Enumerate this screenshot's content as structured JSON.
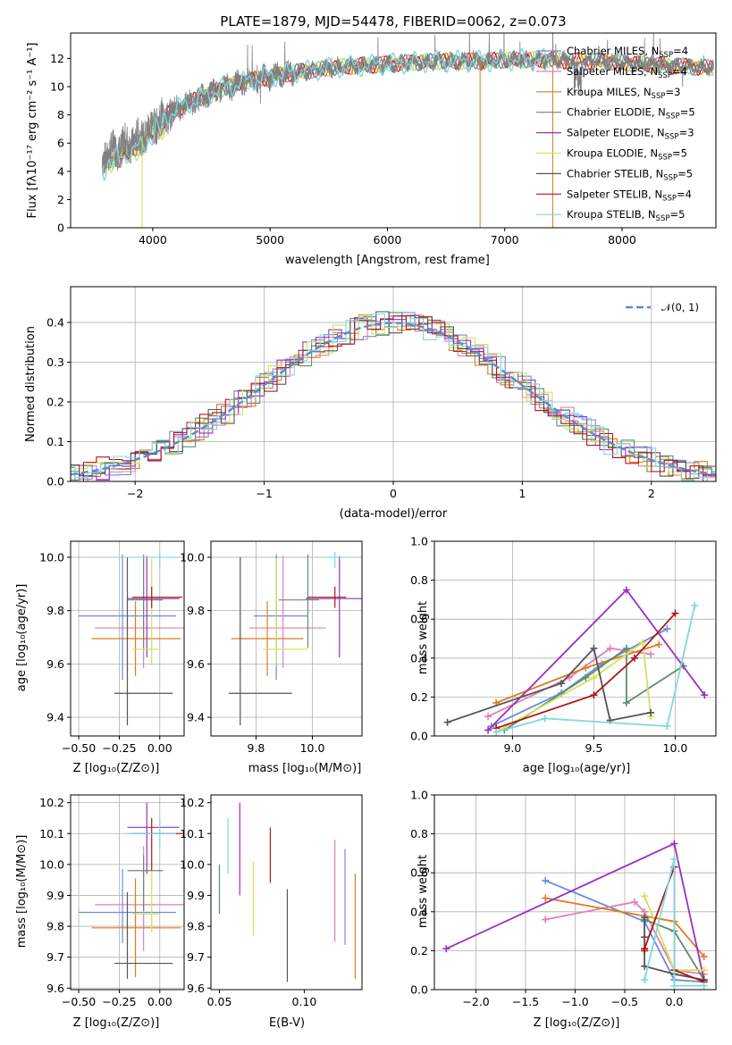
{
  "figure": {
    "title": "PLATE=1879, MJD=54478, FIBERID=0062, z=0.073"
  },
  "colors": {
    "Chabrier MILES": "#6a8ce0",
    "Salpeter MILES": "#e27fb5",
    "Kroupa MILES": "#e07a1f",
    "Chabrier ELODIE": "#5f8e6a",
    "Salpeter ELODIE": "#9b2ec0",
    "Kroupa ELODIE": "#cfe35a",
    "Chabrier STELIB": "#555555",
    "Salpeter STELIB": "#b01515",
    "Kroupa STELIB": "#7fd8df",
    "gray_spectrum": "#808080",
    "gauss": "#5b8bd6"
  },
  "chart_data": [
    {
      "id": "spectrum",
      "type": "line",
      "xlabel": "wavelength [Angstrom, rest frame]",
      "ylabel": "Flux [fλ10⁻¹⁷ erg cm⁻² s⁻¹ A⁻¹]",
      "xlim": [
        3300,
        8800
      ],
      "ylim": [
        0,
        13.8
      ],
      "xticks": [
        4000,
        5000,
        6000,
        7000,
        8000
      ],
      "yticks": [
        0,
        2,
        4,
        6,
        8,
        10,
        12
      ],
      "grid": false,
      "legend": "right",
      "legend_entries": [
        {
          "name": "Chabrier MILES",
          "nssp": "4"
        },
        {
          "name": "Salpeter MILES",
          "nssp": "4"
        },
        {
          "name": "Kroupa MILES",
          "nssp": "3"
        },
        {
          "name": "Chabrier ELODIE",
          "nssp": "5"
        },
        {
          "name": "Salpeter ELODIE",
          "nssp": "3"
        },
        {
          "name": "Kroupa ELODIE",
          "nssp": "5"
        },
        {
          "name": "Chabrier STELIB",
          "nssp": "5"
        },
        {
          "name": "Salpeter STELIB",
          "nssp": "4"
        },
        {
          "name": "Kroupa STELIB",
          "nssp": "5"
        }
      ],
      "continuum": {
        "x": [
          3570,
          3700,
          3900,
          4000,
          4200,
          4400,
          4600,
          4800,
          5000,
          5200,
          5400,
          5600,
          5800,
          6000,
          6200,
          6400,
          6600,
          6800,
          7000,
          7200,
          7400,
          7600,
          7800,
          8000,
          8200,
          8400,
          8600,
          8800
        ],
        "y": [
          5.0,
          5.6,
          6.4,
          7.3,
          8.4,
          9.2,
          9.9,
          10.4,
          10.7,
          11.0,
          11.2,
          11.4,
          11.5,
          11.6,
          11.7,
          11.8,
          11.8,
          11.8,
          11.9,
          11.9,
          11.9,
          11.8,
          11.8,
          11.7,
          11.6,
          11.5,
          11.4,
          11.3
        ]
      },
      "spikes": [
        {
          "x": 3910,
          "y": 0,
          "color": "Kroupa ELODIE"
        },
        {
          "x": 6790,
          "y": 0,
          "color": "Kroupa MILES"
        },
        {
          "x": 7410,
          "y": 0,
          "color": "Kroupa MILES"
        }
      ]
    },
    {
      "id": "residuals",
      "type": "line",
      "xlabel": "(data-model)/error",
      "ylabel": "Normed distribution",
      "xlim": [
        -2.5,
        2.5
      ],
      "ylim": [
        0,
        0.49
      ],
      "xticks": [
        -2,
        -1,
        0,
        1,
        2
      ],
      "yticks": [
        0.0,
        0.1,
        0.2,
        0.3,
        0.4
      ],
      "grid": true,
      "legend": "top-right",
      "legend_entries": [
        {
          "name": "𝒩(0, 1)"
        }
      ],
      "gaussian": {
        "mu": 0,
        "sigma": 1
      }
    },
    {
      "id": "age_vs_Z",
      "type": "scatter",
      "xlabel": "Z [log₁₀(Z/Z⊙)]",
      "ylabel": "age  [log₁₀(age/yr)]",
      "xlim": [
        -0.55,
        0.15
      ],
      "ylim": [
        9.33,
        10.06
      ],
      "xticks": [
        -0.5,
        -0.25,
        0.0
      ],
      "yticks": [
        9.4,
        9.6,
        9.8,
        10.0
      ],
      "grid": true,
      "points": [
        {
          "series": "Chabrier MILES",
          "x": -0.23,
          "y": 9.78,
          "xerr": [
            0.27,
            0.33
          ],
          "yerr": [
            0.24,
            0.23
          ]
        },
        {
          "series": "Salpeter MILES",
          "x": -0.1,
          "y": 9.735,
          "xerr": [
            0.3,
            0.33
          ],
          "yerr": [
            0.15,
            0.27
          ]
        },
        {
          "series": "Kroupa MILES",
          "x": -0.15,
          "y": 9.695,
          "xerr": [
            0.27,
            0.28
          ],
          "yerr": [
            0.14,
            0.14
          ]
        },
        {
          "series": "Chabrier ELODIE",
          "x": -0.1,
          "y": 9.84,
          "xerr": [
            0.1,
            0.12
          ],
          "yerr": [
            0.18,
            0.17
          ]
        },
        {
          "series": "Salpeter ELODIE",
          "x": -0.08,
          "y": 9.845,
          "xerr": [
            0.12,
            0.2
          ],
          "yerr": [
            0.22,
            0.16
          ]
        },
        {
          "series": "Kroupa ELODIE",
          "x": -0.05,
          "y": 9.655,
          "xerr": [
            0.12,
            0.05
          ],
          "yerr": [
            0.06,
            0.34
          ]
        },
        {
          "series": "Chabrier STELIB",
          "x": -0.2,
          "y": 9.49,
          "xerr": [
            0.08,
            0.28
          ],
          "yerr": [
            0.12,
            0.51
          ]
        },
        {
          "series": "Salpeter STELIB",
          "x": -0.05,
          "y": 9.85,
          "xerr": [
            0.12,
            0.19
          ],
          "yerr": [
            0.04,
            0.04
          ]
        },
        {
          "series": "Kroupa STELIB",
          "x": 0.0,
          "y": 10.0,
          "xerr": [
            0.2,
            0.1
          ],
          "yerr": [
            0.04,
            0.02
          ]
        }
      ]
    },
    {
      "id": "age_vs_mass",
      "type": "scatter",
      "xlabel": "mass [log₁₀(M/M⊙)]",
      "ylabel": "",
      "xlim": [
        9.55,
        10.22
      ],
      "ylim": [
        9.33,
        10.06
      ],
      "xticks": [
        9.75,
        10.0
      ],
      "yticks": [
        9.4,
        9.6,
        9.8,
        10.0
      ],
      "grid": true,
      "points": [
        {
          "series": "Chabrier MILES",
          "x": 9.84,
          "y": 9.78,
          "xerr": [
            0.1,
            0.14
          ],
          "yerr": [
            0.24,
            0.23
          ]
        },
        {
          "series": "Salpeter MILES",
          "x": 9.87,
          "y": 9.735,
          "xerr": [
            0.15,
            0.19
          ],
          "yerr": [
            0.15,
            0.27
          ]
        },
        {
          "series": "Kroupa MILES",
          "x": 9.8,
          "y": 9.695,
          "xerr": [
            0.16,
            0.16
          ],
          "yerr": [
            0.14,
            0.14
          ]
        },
        {
          "series": "Chabrier ELODIE",
          "x": 9.98,
          "y": 9.84,
          "xerr": [
            0.13,
            0.05
          ],
          "yerr": [
            0.18,
            0.17
          ]
        },
        {
          "series": "Salpeter ELODIE",
          "x": 10.12,
          "y": 9.845,
          "xerr": [
            0.15,
            0.11
          ],
          "yerr": [
            0.22,
            0.16
          ]
        },
        {
          "series": "Kroupa ELODIE",
          "x": 9.84,
          "y": 9.655,
          "xerr": [
            0.06,
            0.14
          ],
          "yerr": [
            0.06,
            0.34
          ]
        },
        {
          "series": "Chabrier STELIB",
          "x": 9.68,
          "y": 9.49,
          "xerr": [
            0.05,
            0.23
          ],
          "yerr": [
            0.12,
            0.51
          ]
        },
        {
          "series": "Salpeter STELIB",
          "x": 10.1,
          "y": 9.85,
          "xerr": [
            0.12,
            0.05
          ],
          "yerr": [
            0.04,
            0.04
          ]
        },
        {
          "series": "Kroupa STELIB",
          "x": 10.1,
          "y": 10.0,
          "xerr": [
            0.05,
            0.05
          ],
          "yerr": [
            0.04,
            0.02
          ]
        }
      ]
    },
    {
      "id": "weight_vs_age",
      "type": "line",
      "xlabel": "age  [log₁₀(age/yr)]",
      "ylabel": "mass weight",
      "xlim": [
        8.52,
        10.25
      ],
      "ylim": [
        0,
        1
      ],
      "xticks": [
        9.0,
        9.5,
        10.0
      ],
      "yticks": [
        0.0,
        0.2,
        0.4,
        0.6,
        0.8,
        1.0
      ],
      "grid": true,
      "series": [
        {
          "name": "Chabrier MILES",
          "x": [
            8.87,
            9.3,
            9.55,
            9.95
          ],
          "y": [
            0.05,
            0.22,
            0.37,
            0.55
          ]
        },
        {
          "name": "Salpeter MILES",
          "x": [
            8.85,
            9.35,
            9.6,
            9.85
          ],
          "y": [
            0.1,
            0.3,
            0.45,
            0.42
          ]
        },
        {
          "name": "Kroupa MILES",
          "x": [
            8.9,
            9.45,
            9.9
          ],
          "y": [
            0.17,
            0.35,
            0.47
          ]
        },
        {
          "name": "Chabrier ELODIE",
          "x": [
            8.95,
            9.45,
            9.7,
            9.7,
            10.05
          ],
          "y": [
            0.03,
            0.3,
            0.45,
            0.17,
            0.36
          ]
        },
        {
          "name": "Salpeter ELODIE",
          "x": [
            8.85,
            9.7,
            10.18
          ],
          "y": [
            0.03,
            0.75,
            0.21
          ]
        },
        {
          "name": "Kroupa ELODIE",
          "x": [
            8.9,
            9.5,
            9.8,
            9.85
          ],
          "y": [
            0.02,
            0.3,
            0.48,
            0.1
          ]
        },
        {
          "name": "Chabrier STELIB",
          "x": [
            8.6,
            9.3,
            9.5,
            9.6,
            9.85
          ],
          "y": [
            0.07,
            0.27,
            0.45,
            0.08,
            0.12
          ]
        },
        {
          "name": "Salpeter STELIB",
          "x": [
            8.9,
            9.5,
            9.75,
            10.0
          ],
          "y": [
            0.04,
            0.21,
            0.4,
            0.63
          ]
        },
        {
          "name": "Kroupa STELIB",
          "x": [
            8.9,
            9.2,
            9.95,
            10.12
          ],
          "y": [
            0.02,
            0.09,
            0.05,
            0.67
          ]
        }
      ]
    },
    {
      "id": "mass_vs_Z",
      "type": "scatter",
      "xlabel": "Z [log₁₀(Z/Z⊙)]",
      "ylabel": "mass [log₁₀(M/M⊙)]",
      "xlim": [
        -0.55,
        0.15
      ],
      "ylim": [
        9.595,
        10.225
      ],
      "xticks": [
        -0.5,
        -0.25,
        0.0
      ],
      "yticks": [
        9.6,
        9.7,
        9.8,
        9.9,
        10.0,
        10.1,
        10.2
      ],
      "grid": true,
      "points": [
        {
          "series": "Chabrier MILES",
          "x": -0.23,
          "y": 9.845,
          "xerr": [
            0.27,
            0.33
          ],
          "yerr": [
            0.1,
            0.14
          ]
        },
        {
          "series": "Salpeter MILES",
          "x": -0.1,
          "y": 9.87,
          "xerr": [
            0.3,
            0.33
          ],
          "yerr": [
            0.15,
            0.19
          ]
        },
        {
          "series": "Kroupa MILES",
          "x": -0.15,
          "y": 9.795,
          "xerr": [
            0.27,
            0.28
          ],
          "yerr": [
            0.16,
            0.16
          ]
        },
        {
          "series": "Chabrier ELODIE",
          "x": -0.1,
          "y": 9.98,
          "xerr": [
            0.1,
            0.12
          ],
          "yerr": [
            0.13,
            0.05
          ]
        },
        {
          "series": "Salpeter ELODIE",
          "x": -0.08,
          "y": 10.12,
          "xerr": [
            0.12,
            0.2
          ],
          "yerr": [
            0.15,
            0.08
          ]
        },
        {
          "series": "Kroupa ELODIE",
          "x": -0.05,
          "y": 9.84,
          "xerr": [
            0.12,
            0.05
          ],
          "yerr": [
            0.06,
            0.14
          ]
        },
        {
          "series": "Chabrier STELIB",
          "x": -0.2,
          "y": 9.68,
          "xerr": [
            0.08,
            0.28
          ],
          "yerr": [
            0.05,
            0.23
          ]
        },
        {
          "series": "Salpeter STELIB",
          "x": -0.05,
          "y": 10.1,
          "xerr": [
            0.12,
            0.19
          ],
          "yerr": [
            0.12,
            0.05
          ]
        },
        {
          "series": "Kroupa STELIB",
          "x": 0.0,
          "y": 10.1,
          "xerr": [
            0.2,
            0.1
          ],
          "yerr": [
            0.05,
            0.05
          ]
        }
      ]
    },
    {
      "id": "mass_vs_ebv",
      "type": "scatter",
      "xlabel": "E(B-V)",
      "ylabel": "",
      "xlim": [
        0.045,
        0.134
      ],
      "ylim": [
        9.595,
        10.225
      ],
      "xticks": [
        0.05,
        0.1
      ],
      "xticklabels": [
        "0.05",
        "0.10"
      ],
      "yticks": [
        9.6,
        9.7,
        9.8,
        9.9,
        10.0,
        10.1,
        10.2
      ],
      "grid": false,
      "points": [
        {
          "series": "Chabrier ELODIE",
          "x": 0.05,
          "y": 9.93,
          "yerr": [
            0.09,
            0.07
          ]
        },
        {
          "series": "Kroupa STELIB",
          "x": 0.055,
          "y": 10.06,
          "yerr": [
            0.09,
            0.09
          ]
        },
        {
          "series": "Salpeter ELODIE",
          "x": 0.062,
          "y": 10.06,
          "yerr": [
            0.16,
            0.14
          ]
        },
        {
          "series": "Kroupa ELODIE",
          "x": 0.07,
          "y": 9.89,
          "yerr": [
            0.12,
            0.12
          ]
        },
        {
          "series": "Salpeter STELIB",
          "x": 0.08,
          "y": 10.03,
          "yerr": [
            0.09,
            0.09
          ]
        },
        {
          "series": "Chabrier STELIB",
          "x": 0.09,
          "y": 9.77,
          "yerr": [
            0.15,
            0.15
          ]
        },
        {
          "series": "Salpeter MILES",
          "x": 0.118,
          "y": 9.91,
          "yerr": [
            0.16,
            0.17
          ]
        },
        {
          "series": "Chabrier MILES",
          "x": 0.124,
          "y": 9.85,
          "yerr": [
            0.11,
            0.2
          ]
        },
        {
          "series": "Kroupa MILES",
          "x": 0.13,
          "y": 9.8,
          "yerr": [
            0.17,
            0.17
          ]
        }
      ]
    },
    {
      "id": "weight_vs_Z",
      "type": "line",
      "xlabel": "Z [log₁₀(Z/Z⊙)]",
      "ylabel": "mass weight",
      "xlim": [
        -2.42,
        0.42
      ],
      "ylim": [
        0,
        1
      ],
      "xticks": [
        -2.0,
        -1.5,
        -1.0,
        -0.5,
        0.0
      ],
      "yticks": [
        0.0,
        0.2,
        0.4,
        0.6,
        0.8,
        1.0
      ],
      "grid": true,
      "series": [
        {
          "name": "Chabrier MILES",
          "x": [
            -1.3,
            -0.3,
            0.0,
            0.3
          ],
          "y": [
            0.56,
            0.35,
            0.05,
            0.04
          ]
        },
        {
          "name": "Salpeter MILES",
          "x": [
            -1.3,
            -0.4,
            -0.3,
            0.0,
            0.3
          ],
          "y": [
            0.36,
            0.45,
            0.4,
            0.1,
            0.08
          ]
        },
        {
          "name": "Kroupa MILES",
          "x": [
            -1.3,
            0.0,
            0.3
          ],
          "y": [
            0.47,
            0.35,
            0.17
          ]
        },
        {
          "name": "Chabrier ELODIE",
          "x": [
            -0.3,
            0.0,
            0.3
          ],
          "y": [
            0.36,
            0.3,
            0.05
          ]
        },
        {
          "name": "Salpeter ELODIE",
          "x": [
            -2.3,
            0.0,
            0.3
          ],
          "y": [
            0.21,
            0.75,
            0.05
          ]
        },
        {
          "name": "Kroupa ELODIE",
          "x": [
            -0.3,
            0.0,
            0.3
          ],
          "y": [
            0.48,
            0.1,
            0.1
          ]
        },
        {
          "name": "Chabrier STELIB",
          "x": [
            -0.3,
            -0.3,
            -0.3,
            0.0,
            0.3
          ],
          "y": [
            0.37,
            0.27,
            0.12,
            0.08,
            0.05
          ]
        },
        {
          "name": "Salpeter STELIB",
          "x": [
            -0.3,
            -0.3,
            0.0,
            0.0,
            0.3
          ],
          "y": [
            0.2,
            0.21,
            0.63,
            0.1,
            0.04
          ]
        },
        {
          "name": "Kroupa STELIB",
          "x": [
            -0.3,
            0.0,
            0.0,
            0.3
          ],
          "y": [
            0.05,
            0.67,
            0.02,
            0.02
          ]
        }
      ]
    }
  ]
}
